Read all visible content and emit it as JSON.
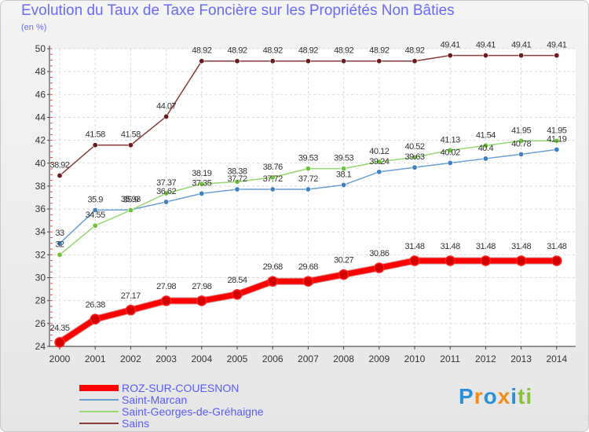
{
  "title": "Evolution du Taux de Taxe Foncière sur les Propriétés Non Bâties",
  "unit": "(en %)",
  "logo": {
    "letters": [
      "P",
      "r",
      "o",
      "x",
      "i",
      "t",
      "i"
    ],
    "colors": [
      "#2a90d8",
      "#f08c1a",
      "#2a90d8",
      "#f08c1a",
      "#2a90d8",
      "#8ac33a",
      "#8ac33a"
    ]
  },
  "chart_data": {
    "type": "line",
    "title": "Evolution du Taux de Taxe Foncière sur les Propriétés Non Bâties",
    "ylabel": "(en %)",
    "xlabel": "",
    "ylim": [
      24,
      50
    ],
    "yticks": [
      24,
      26,
      28,
      30,
      32,
      34,
      36,
      38,
      40,
      42,
      44,
      46,
      48,
      50
    ],
    "categories": [
      "2000",
      "2001",
      "2002",
      "2003",
      "2004",
      "2005",
      "2006",
      "2007",
      "2008",
      "2009",
      "2010",
      "2011",
      "2012",
      "2013",
      "2014"
    ],
    "grid": true,
    "legend_placement": "bottom-left",
    "series": [
      {
        "name": "ROZ-SUR-COUESNON",
        "color": "#ff0000",
        "marker": "#d40000",
        "width": 7,
        "values": [
          24.35,
          26.38,
          27.17,
          27.98,
          27.98,
          28.54,
          29.68,
          29.68,
          30.27,
          30.86,
          31.48,
          31.48,
          31.48,
          31.48,
          31.48
        ],
        "labels": [
          "24.35",
          "26.38",
          "27.17",
          "27.98",
          "27.98",
          "28.54",
          "29.68",
          "29.68",
          "30.27",
          "30.86",
          "31.48",
          "31.48",
          "31.48",
          "31.48",
          "31.48"
        ]
      },
      {
        "name": "Saint-Marcan",
        "color": "#6a9fd4",
        "marker": "#3f80c0",
        "width": 1.5,
        "values": [
          33.0,
          35.9,
          35.93,
          36.62,
          37.35,
          37.72,
          37.72,
          37.72,
          38.1,
          39.24,
          39.63,
          40.02,
          40.4,
          40.78,
          41.19
        ],
        "labels": [
          "33",
          "35.9",
          "35.93",
          "36.62",
          "37.35",
          "37.72",
          "37.72",
          "37.72",
          "38.1",
          "39.24",
          "39.63",
          "40.02",
          "40.4",
          "40.78",
          "41.19"
        ]
      },
      {
        "name": "Saint-Georges-de-Gréhaigne",
        "color": "#98d870",
        "marker": "#6cc23a",
        "width": 1.5,
        "values": [
          32.0,
          34.55,
          35.9,
          37.37,
          38.19,
          38.38,
          38.76,
          39.53,
          39.53,
          40.12,
          40.52,
          41.13,
          41.54,
          41.95,
          41.95
        ],
        "labels": [
          "32",
          "34.55",
          "35.9",
          "37.37",
          "38.19",
          "38.38",
          "38.76",
          "39.53",
          "39.53",
          "40.12",
          "40.52",
          "41.13",
          "41.54",
          "41.95",
          "41.95"
        ]
      },
      {
        "name": "Sains",
        "color": "#8a3a3a",
        "marker": "#6a1a1a",
        "width": 1.5,
        "values": [
          38.92,
          41.58,
          41.58,
          44.07,
          48.92,
          48.92,
          48.92,
          48.92,
          48.92,
          48.92,
          48.92,
          49.41,
          49.41,
          49.41,
          49.41
        ],
        "labels": [
          "38.92",
          "41.58",
          "41.58",
          "44.07",
          "48.92",
          "48.92",
          "48.92",
          "48.92",
          "48.92",
          "48.92",
          "48.92",
          "49.41",
          "49.41",
          "49.41",
          "49.41"
        ]
      }
    ]
  }
}
